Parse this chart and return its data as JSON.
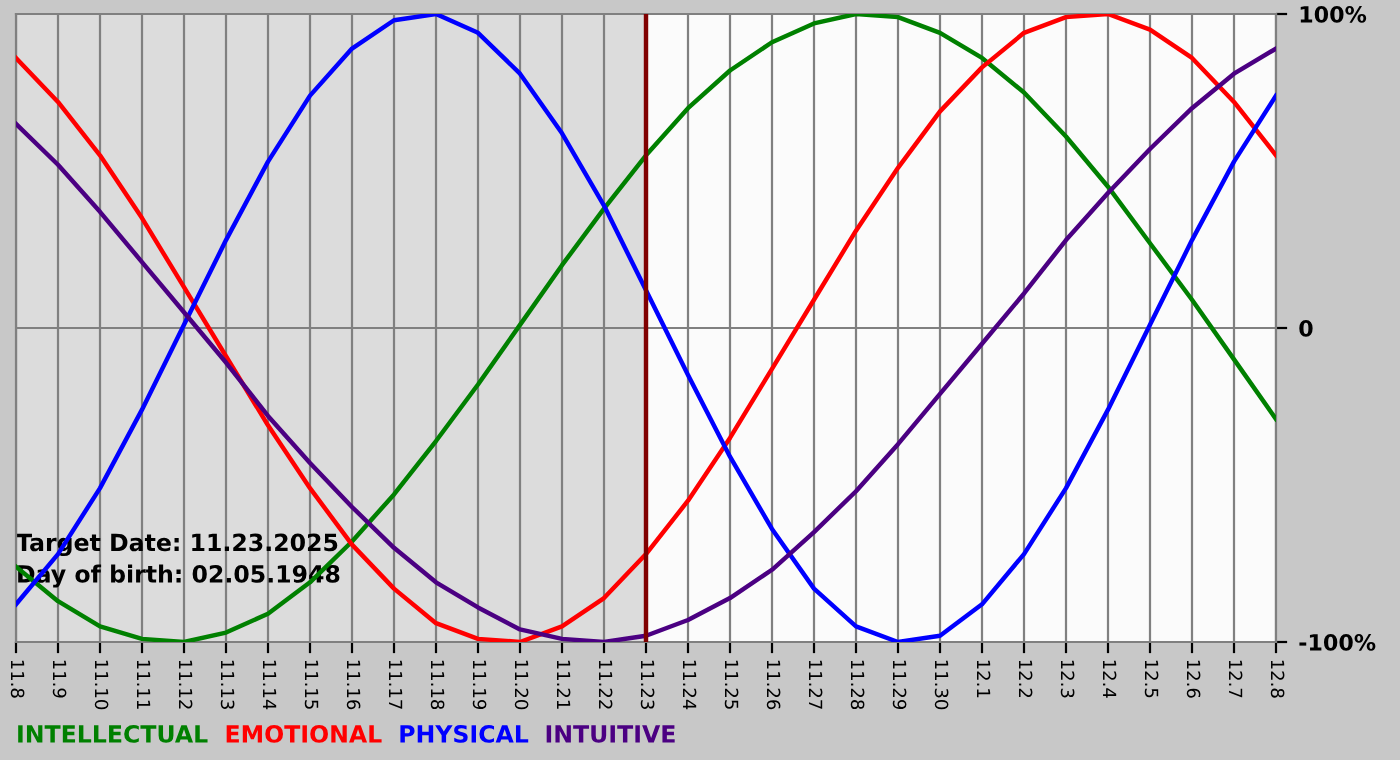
{
  "chart_data": {
    "type": "line",
    "categories": [
      "11.8",
      "11.9",
      "11.10",
      "11.11",
      "11.12",
      "11.13",
      "11.14",
      "11.15",
      "11.16",
      "11.17",
      "11.18",
      "11.19",
      "11.20",
      "11.21",
      "11.22",
      "11.23",
      "11.24",
      "11.25",
      "11.26",
      "11.27",
      "11.28",
      "11.29",
      "11.30",
      "12.1",
      "12.2",
      "12.3",
      "12.4",
      "12.5",
      "12.6",
      "12.7",
      "12.8"
    ],
    "series": [
      {
        "name": "INTELLECTUAL",
        "color": "#008000",
        "values": [
          -76,
          -87,
          -95,
          -99,
          -100,
          -97,
          -91,
          -81,
          -68,
          -53,
          -36,
          -18,
          1,
          20,
          38,
          55,
          70,
          82,
          91,
          97,
          100,
          99,
          94,
          86,
          75,
          61,
          45,
          27,
          9,
          -10,
          -29
        ]
      },
      {
        "name": "EMOTIONAL",
        "color": "#ff0000",
        "values": [
          86,
          72,
          55,
          35,
          13,
          -9,
          -31,
          -51,
          -69,
          -83,
          -94,
          -99,
          -100,
          -95,
          -86,
          -72,
          -55,
          -35,
          -13,
          9,
          31,
          51,
          69,
          83,
          94,
          99,
          100,
          95,
          86,
          72,
          55
        ]
      },
      {
        "name": "PHYSICAL",
        "color": "#0000ff",
        "values": [
          -88,
          -72,
          -51,
          -26,
          1,
          28,
          53,
          74,
          89,
          98,
          100,
          94,
          81,
          62,
          39,
          12,
          -15,
          -41,
          -64,
          -83,
          -95,
          -100,
          -98,
          -88,
          -72,
          -51,
          -26,
          1,
          28,
          53,
          74
        ]
      },
      {
        "name": "INTUITIVE",
        "color": "#4b0082",
        "values": [
          65,
          52,
          37,
          21,
          5,
          -11,
          -28,
          -43,
          -57,
          -70,
          -81,
          -89,
          -96,
          -99,
          -100,
          -98,
          -93,
          -86,
          -77,
          -65,
          -52,
          -37,
          -21,
          -5,
          11,
          28,
          43,
          57,
          70,
          81,
          89
        ]
      }
    ],
    "ylim": [
      -100,
      100
    ],
    "yticks": [
      {
        "value": 100,
        "label": "100%"
      },
      0,
      {
        "value": -100,
        "label": "-100%"
      }
    ],
    "ref_lines": [
      {
        "axis": "x",
        "value": "11.23",
        "color": "#800000"
      }
    ],
    "bands": [
      {
        "axis": "x",
        "from": "11.8",
        "to": "11.23",
        "color": "#dcdcdc"
      }
    ],
    "annotations": [
      "Target Date: 11.23.2025",
      "Day of birth: 02.05.1948"
    ],
    "grid": true,
    "legend": "bottom",
    "marker": "none",
    "line_style": "solid"
  }
}
